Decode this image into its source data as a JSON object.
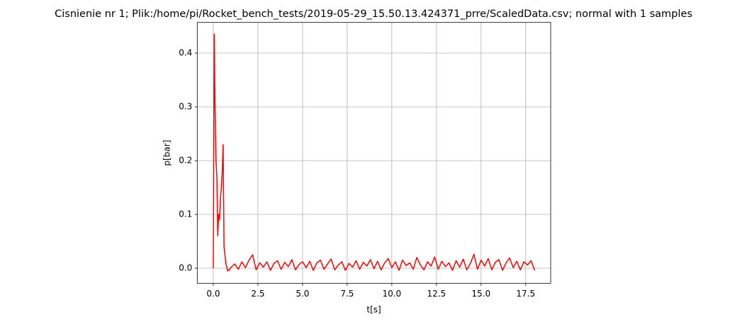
{
  "chart_data": {
    "type": "line",
    "title": "Cisnienie nr 1; Plik:/home/pi/Rocket_bench_tests/2019-05-29_15.50.13.424371_prre/ScaledData.csv; normal with 1 samples",
    "xlabel": "t[s]",
    "ylabel": "p[bar]",
    "x": [
      0,
      0.05,
      0.1,
      0.15,
      0.2,
      0.25,
      0.3,
      0.35,
      0.4,
      0.45,
      0.5,
      0.55,
      0.6,
      0.7,
      0.8,
      0.9,
      1.0,
      1.2,
      1.4,
      1.6,
      1.8,
      2.0,
      2.2,
      2.4,
      2.6,
      2.8,
      3.0,
      3.2,
      3.4,
      3.6,
      3.8,
      4.0,
      4.2,
      4.4,
      4.6,
      4.8,
      5.0,
      5.2,
      5.4,
      5.6,
      5.8,
      6.0,
      6.2,
      6.4,
      6.6,
      6.8,
      7.0,
      7.2,
      7.4,
      7.6,
      7.8,
      8.0,
      8.2,
      8.4,
      8.6,
      8.8,
      9.0,
      9.2,
      9.4,
      9.6,
      9.8,
      10.0,
      10.2,
      10.4,
      10.6,
      10.8,
      11.0,
      11.2,
      11.4,
      11.6,
      11.8,
      12.0,
      12.2,
      12.4,
      12.6,
      12.8,
      13.0,
      13.2,
      13.4,
      13.6,
      13.8,
      14.0,
      14.2,
      14.4,
      14.6,
      14.8,
      15.0,
      15.2,
      15.4,
      15.6,
      15.8,
      16.0,
      16.2,
      16.4,
      16.6,
      16.8,
      17.0,
      17.2,
      17.4,
      17.6,
      17.8,
      18.0
    ],
    "series": [
      {
        "name": "p",
        "color": "#ff0000",
        "values": [
          0,
          0.435,
          0.3,
          0.2,
          0.17,
          0.06,
          0.1,
          0.09,
          0.13,
          0.15,
          0.18,
          0.23,
          0.04,
          0.01,
          -0.005,
          -0.003,
          0.002,
          0.008,
          -0.002,
          0.012,
          0.001,
          0.015,
          0.025,
          -0.003,
          0.01,
          0.002,
          0.012,
          -0.004,
          0.009,
          0.014,
          -0.002,
          0.011,
          0.003,
          0.016,
          -0.003,
          0.007,
          0.012,
          0.001,
          0.013,
          -0.004,
          0.01,
          0.015,
          -0.002,
          0.008,
          0.017,
          -0.003,
          0.006,
          0.012,
          -0.004,
          0.009,
          0.002,
          0.014,
          -0.002,
          0.011,
          0.004,
          0.016,
          -0.001,
          0.013,
          -0.003,
          0.01,
          0.018,
          0.001,
          0.012,
          -0.004,
          0.015,
          0.005,
          0.01,
          -0.002,
          0.02,
          0.006,
          -0.003,
          0.012,
          0.004,
          0.021,
          -0.002,
          0.013,
          0.003,
          0.01,
          -0.004,
          0.014,
          0.002,
          0.017,
          -0.003,
          0.009,
          0.026,
          -0.002,
          0.015,
          0.004,
          0.018,
          -0.003,
          0.011,
          0.016,
          -0.004,
          0.01,
          0.019,
          0.001,
          0.013,
          -0.003,
          0.012,
          0.006,
          0.014,
          -0.004
        ]
      }
    ],
    "xlim": [
      -0.9,
      18.9
    ],
    "xticks": [
      {
        "value": 0,
        "label": "0.0"
      },
      2.5,
      {
        "value": 5,
        "label": "5.0"
      },
      7.5,
      {
        "value": 10,
        "label": "10.0"
      },
      12.5,
      {
        "value": 15,
        "label": "15.0"
      },
      17.5
    ],
    "ylim": [
      -0.028,
      0.457
    ],
    "yticks": [
      {
        "value": 0,
        "label": "0.0"
      },
      0.1,
      0.2,
      0.3,
      0.4
    ],
    "grid": true
  }
}
